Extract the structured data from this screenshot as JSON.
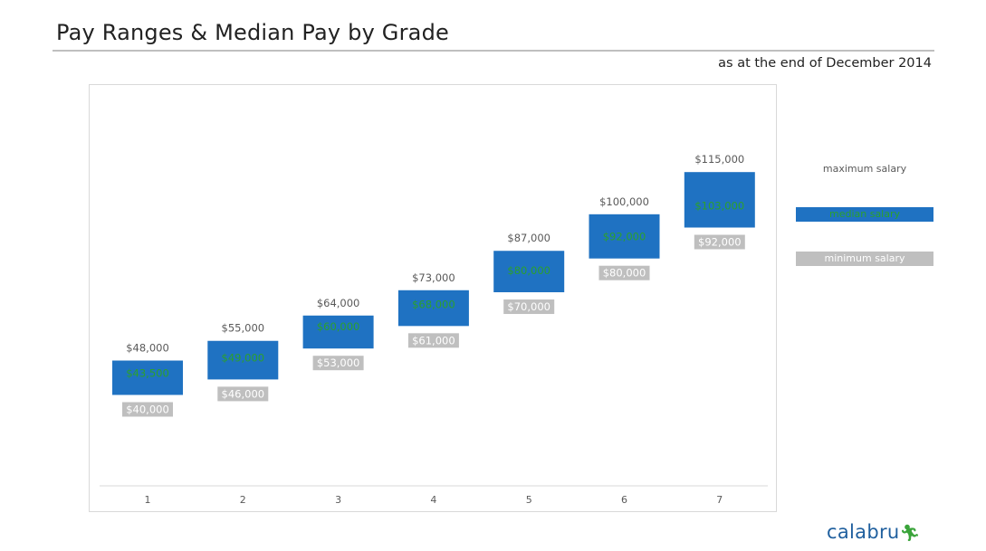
{
  "header": {
    "title": "Pay Ranges & Median Pay by Grade",
    "subtitle": "as at the end of December 2014"
  },
  "legend": {
    "max_label": "maximum salary",
    "median_label": "median salary",
    "min_label": "minimum salary"
  },
  "colors": {
    "median_box": "#1f72c2",
    "median_text": "#2ca02c",
    "min_box": "#bfbfbf",
    "max_text": "#595959",
    "axis_text": "#595959"
  },
  "brand": {
    "logo_text": "calabru",
    "logo_icon": "running-man-icon"
  },
  "chart_data": {
    "type": "bar",
    "categories": [
      "1",
      "2",
      "3",
      "4",
      "5",
      "6",
      "7"
    ],
    "series": [
      {
        "name": "maximum salary",
        "values": [
          48000,
          55000,
          64000,
          73000,
          87000,
          100000,
          115000
        ],
        "labels": [
          "$48,000",
          "$55,000",
          "$64,000",
          "$73,000",
          "$87,000",
          "$100,000",
          "$115,000"
        ]
      },
      {
        "name": "median salary",
        "values": [
          43500,
          49000,
          60000,
          68000,
          80000,
          92000,
          103000
        ],
        "labels": [
          "$43,500",
          "$49,000",
          "$60,000",
          "$68,000",
          "$80,000",
          "$92,000",
          "$103,000"
        ]
      },
      {
        "name": "minimum salary",
        "values": [
          40000,
          46000,
          53000,
          61000,
          70000,
          80000,
          92000
        ],
        "labels": [
          "$40,000",
          "$46,000",
          "$53,000",
          "$61,000",
          "$70,000",
          "$80,000",
          "$92,000"
        ]
      }
    ],
    "legend_position": "right",
    "grid": false
  }
}
